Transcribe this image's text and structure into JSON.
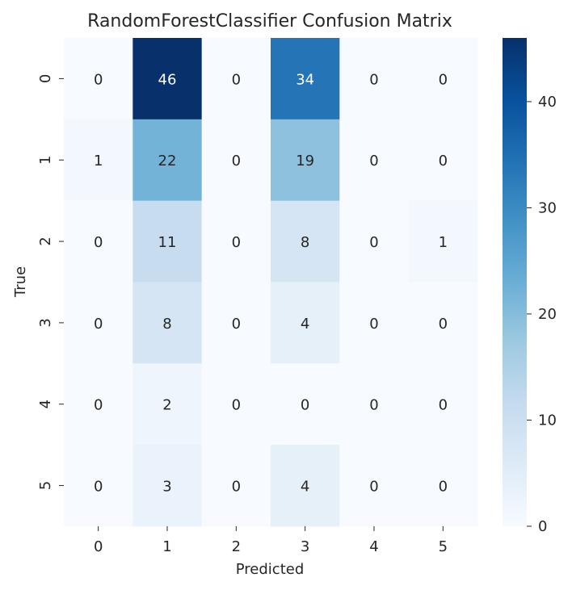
{
  "chart_data": {
    "type": "heatmap",
    "title": "RandomForestClassifier Confusion Matrix",
    "xlabel": "Predicted",
    "ylabel": "True",
    "x_categories": [
      "0",
      "1",
      "2",
      "3",
      "4",
      "5"
    ],
    "y_categories": [
      "0",
      "1",
      "2",
      "3",
      "4",
      "5"
    ],
    "values": [
      [
        0,
        46,
        0,
        34,
        0,
        0
      ],
      [
        1,
        22,
        0,
        19,
        0,
        0
      ],
      [
        0,
        11,
        0,
        8,
        0,
        1
      ],
      [
        0,
        8,
        0,
        4,
        0,
        0
      ],
      [
        0,
        2,
        0,
        0,
        0,
        0
      ],
      [
        0,
        3,
        0,
        4,
        0,
        0
      ]
    ],
    "colormap": "Blues",
    "value_range": [
      0,
      46
    ],
    "colorbar_ticks": [
      "0",
      "10",
      "20",
      "30",
      "40"
    ],
    "colorbar_tick_values": [
      0,
      10,
      20,
      30,
      40
    ]
  }
}
